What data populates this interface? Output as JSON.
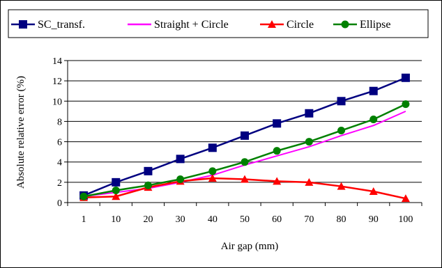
{
  "chart_data": {
    "type": "line",
    "xlabel": "Air gap (mm)",
    "ylabel": "Absolute relative error (%)",
    "categories": [
      "1",
      "10",
      "20",
      "30",
      "40",
      "50",
      "60",
      "70",
      "80",
      "90",
      "100"
    ],
    "ylim": [
      0,
      14
    ],
    "yticks": [
      0,
      2,
      4,
      6,
      8,
      10,
      12,
      14
    ],
    "grid": true,
    "legend_position": "top",
    "series": [
      {
        "name": "SC_transf.",
        "color": "#000080",
        "marker": "square",
        "values": [
          0.7,
          2.0,
          3.1,
          4.3,
          5.4,
          6.6,
          7.8,
          8.8,
          10.0,
          11.0,
          12.3
        ]
      },
      {
        "name": "Straight + Circle",
        "color": "#ff00ff",
        "marker": "none",
        "values": [
          0.6,
          1.0,
          1.4,
          2.0,
          2.7,
          3.7,
          4.6,
          5.5,
          6.6,
          7.6,
          9.0
        ]
      },
      {
        "name": "Circle",
        "color": "#ff0000",
        "marker": "triangle",
        "values": [
          0.5,
          0.6,
          1.5,
          2.1,
          2.4,
          2.3,
          2.1,
          2.0,
          1.6,
          1.1,
          0.4
        ]
      },
      {
        "name": "Ellipse",
        "color": "#008000",
        "marker": "circle",
        "values": [
          0.6,
          1.2,
          1.7,
          2.3,
          3.1,
          4.0,
          5.1,
          6.0,
          7.1,
          8.2,
          9.7
        ]
      }
    ]
  }
}
